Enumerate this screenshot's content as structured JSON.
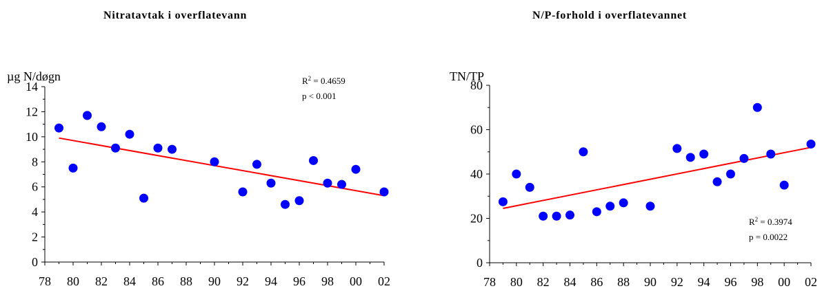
{
  "chart_data": [
    {
      "type": "scatter",
      "title": "Nitratavtak i overflatevann",
      "ylabel": "µg N/døgn",
      "xlabel": "",
      "x_ticks": [
        "78",
        "80",
        "82",
        "84",
        "86",
        "88",
        "90",
        "92",
        "94",
        "96",
        "98",
        "00",
        "02"
      ],
      "y_ticks": [
        "0",
        "2",
        "4",
        "6",
        "8",
        "10",
        "12",
        "14"
      ],
      "xlim": [
        1978,
        2002
      ],
      "ylim": [
        0,
        14
      ],
      "points": [
        {
          "x": 1979,
          "y": 10.7
        },
        {
          "x": 1980,
          "y": 7.5
        },
        {
          "x": 1981,
          "y": 11.7
        },
        {
          "x": 1982,
          "y": 10.8
        },
        {
          "x": 1983,
          "y": 9.1
        },
        {
          "x": 1984,
          "y": 10.2
        },
        {
          "x": 1985,
          "y": 5.1
        },
        {
          "x": 1986,
          "y": 9.1
        },
        {
          "x": 1987,
          "y": 9.0
        },
        {
          "x": 1990,
          "y": 8.0
        },
        {
          "x": 1992,
          "y": 5.6
        },
        {
          "x": 1993,
          "y": 7.8
        },
        {
          "x": 1994,
          "y": 6.3
        },
        {
          "x": 1995,
          "y": 4.6
        },
        {
          "x": 1996,
          "y": 4.9
        },
        {
          "x": 1997,
          "y": 8.1
        },
        {
          "x": 1998,
          "y": 6.3
        },
        {
          "x": 1999,
          "y": 6.2
        },
        {
          "x": 2000,
          "y": 7.4
        },
        {
          "x": 2002,
          "y": 5.6
        }
      ],
      "trendline": {
        "x": [
          1979,
          2002
        ],
        "y": [
          9.9,
          5.3
        ]
      },
      "r2_label": "R",
      "r2_sup": "2",
      "r2_value": " = 0.4659",
      "p_text": "p < 0.001",
      "marker_color": "#0000ff",
      "trend_color": "#ff0000",
      "grid": false
    },
    {
      "type": "scatter",
      "title": "N/P-forhold i overflatevannet",
      "ylabel": "TN/TP",
      "xlabel": "",
      "x_ticks": [
        "78",
        "80",
        "82",
        "84",
        "86",
        "88",
        "90",
        "92",
        "94",
        "96",
        "98",
        "00",
        "02"
      ],
      "y_ticks": [
        "0",
        "20",
        "40",
        "60",
        "80"
      ],
      "xlim": [
        1978,
        2002
      ],
      "ylim": [
        0,
        80
      ],
      "points": [
        {
          "x": 1979,
          "y": 27.5
        },
        {
          "x": 1980,
          "y": 40
        },
        {
          "x": 1981,
          "y": 34
        },
        {
          "x": 1982,
          "y": 21
        },
        {
          "x": 1983,
          "y": 21
        },
        {
          "x": 1984,
          "y": 21.5
        },
        {
          "x": 1985,
          "y": 50
        },
        {
          "x": 1986,
          "y": 23
        },
        {
          "x": 1987,
          "y": 25.5
        },
        {
          "x": 1988,
          "y": 27
        },
        {
          "x": 1990,
          "y": 25.5
        },
        {
          "x": 1992,
          "y": 51.5
        },
        {
          "x": 1993,
          "y": 47.5
        },
        {
          "x": 1994,
          "y": 49
        },
        {
          "x": 1995,
          "y": 36.5
        },
        {
          "x": 1996,
          "y": 40
        },
        {
          "x": 1997,
          "y": 47
        },
        {
          "x": 1998,
          "y": 70
        },
        {
          "x": 1999,
          "y": 49
        },
        {
          "x": 2000,
          "y": 35
        },
        {
          "x": 2002,
          "y": 53.5
        }
      ],
      "trendline": {
        "x": [
          1979,
          2002
        ],
        "y": [
          24.5,
          52
        ]
      },
      "r2_label": "R",
      "r2_sup": "2",
      "r2_value": " = 0.3974",
      "p_text": "p = 0.0022",
      "marker_color": "#0000ff",
      "trend_color": "#ff0000",
      "grid": false
    }
  ]
}
